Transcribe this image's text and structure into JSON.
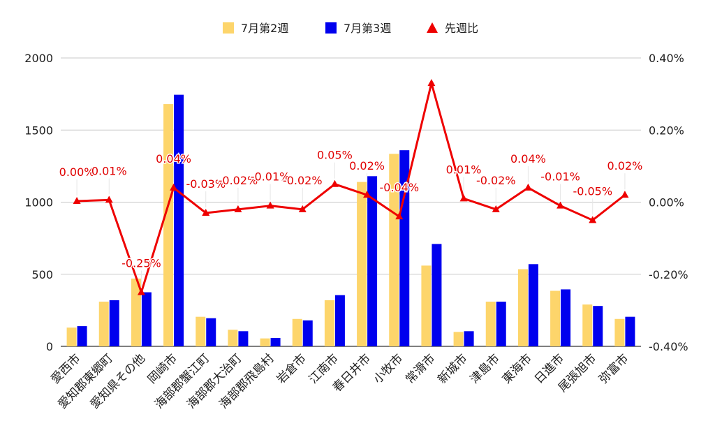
{
  "chart_data": {
    "type": "bar",
    "categories": [
      "愛西市",
      "愛知郡東郷町",
      "愛知県その他",
      "岡崎市",
      "海部郡蟹江町",
      "海部郡大治町",
      "海部郡飛島村",
      "岩倉市",
      "江南市",
      "春日井市",
      "小牧市",
      "常滑市",
      "新城市",
      "津島市",
      "東海市",
      "日進市",
      "尾張旭市",
      "弥富市"
    ],
    "series": [
      {
        "name": "7月第2週",
        "axis": "left",
        "color": "#fdd56b",
        "values": [
          130,
          310,
          470,
          1680,
          205,
          115,
          55,
          190,
          320,
          1140,
          1335,
          560,
          100,
          310,
          535,
          385,
          290,
          190
        ]
      },
      {
        "name": "7月第3週",
        "axis": "left",
        "color": "#0000ee",
        "values": [
          140,
          320,
          375,
          1745,
          195,
          105,
          58,
          180,
          355,
          1180,
          1360,
          710,
          105,
          310,
          570,
          395,
          280,
          205
        ]
      },
      {
        "name": "先週比",
        "axis": "right",
        "type": "line",
        "marker": "triangle",
        "color": "#ee0000",
        "values": [
          0.003,
          0.006,
          -0.25,
          0.04,
          -0.03,
          -0.02,
          -0.01,
          -0.02,
          0.05,
          0.02,
          -0.04,
          0.33,
          0.01,
          -0.02,
          0.04,
          -0.01,
          -0.05,
          0.02
        ],
        "labels": [
          "0.00%",
          "0.01%",
          "-0.25%",
          "0.04%",
          "-0.03%",
          "-0.02%",
          "-0.01%",
          "-0.02%",
          "0.05%",
          "0.02%",
          "-0.04%",
          "",
          "0.01%",
          "-0.02%",
          "0.04%",
          "-0.01%",
          "-0.05%",
          "0.02%"
        ]
      }
    ],
    "y_left": {
      "min": 0,
      "max": 2000,
      "ticks": [
        "0",
        "500",
        "1000",
        "1500",
        "2000"
      ]
    },
    "y_right": {
      "min": -0.4,
      "max": 0.4,
      "ticks": [
        "-0.40%",
        "-0.20%",
        "0.00%",
        "0.20%",
        "0.40%"
      ]
    },
    "grid": true,
    "legend_position": "top"
  }
}
